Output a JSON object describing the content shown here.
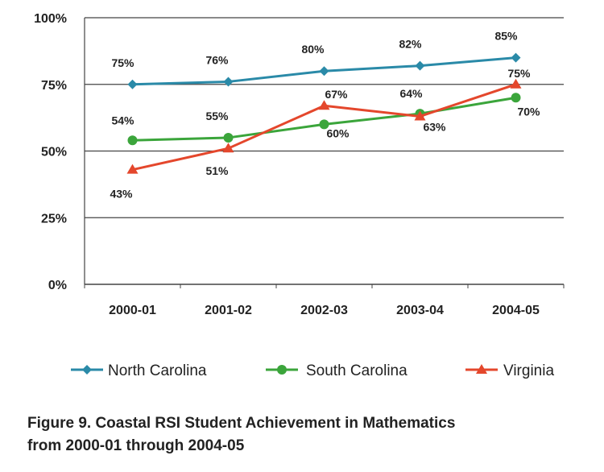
{
  "chart_data": {
    "type": "line",
    "categories": [
      "2000-01",
      "2001-02",
      "2002-03",
      "2003-04",
      "2004-05"
    ],
    "series": [
      {
        "name": "North Carolina",
        "values": [
          75,
          76,
          80,
          82,
          85
        ],
        "labels": [
          "75%",
          "76%",
          "80%",
          "82%",
          "85%"
        ],
        "color": "#2A8AA8",
        "marker": "diamond"
      },
      {
        "name": "South Carolina",
        "values": [
          54,
          55,
          60,
          64,
          70
        ],
        "labels": [
          "54%",
          "55%",
          "60%",
          "64%",
          "70%"
        ],
        "color": "#3BA53B",
        "marker": "circle"
      },
      {
        "name": "Virginia",
        "values": [
          43,
          51,
          67,
          63,
          75
        ],
        "labels": [
          "43%",
          "51%",
          "67%",
          "63%",
          "75%"
        ],
        "color": "#E4472C",
        "marker": "triangle"
      }
    ],
    "y_ticks": [
      0,
      25,
      50,
      75,
      100
    ],
    "y_tick_labels": [
      "0%",
      "25%",
      "50%",
      "75%",
      "100%"
    ],
    "ylim": [
      0,
      100
    ],
    "grid": true,
    "legend_position": "bottom"
  },
  "caption": {
    "line1": "Figure 9. Coastal RSI Student Achievement in Mathematics",
    "line2": "from 2000-01 through 2004-05"
  }
}
